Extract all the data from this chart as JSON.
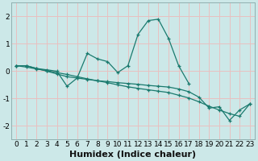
{
  "xlabel": "Humidex (Indice chaleur)",
  "bg_color": "#cce8e8",
  "grid_color": "#e8c0c0",
  "line_color": "#1a7a6e",
  "x_data": [
    0,
    1,
    2,
    3,
    4,
    5,
    6,
    7,
    8,
    9,
    10,
    11,
    12,
    13,
    14,
    15,
    16,
    17,
    18,
    19,
    20,
    21,
    22,
    23
  ],
  "curve1": [
    0.2,
    0.2,
    0.1,
    0.05,
    0.0,
    -0.55,
    -0.25,
    0.65,
    0.45,
    0.35,
    -0.05,
    0.2,
    1.35,
    1.85,
    1.9,
    1.2,
    0.2,
    -0.45,
    null,
    null,
    null,
    null,
    null,
    null
  ],
  "curve2": [
    0.2,
    0.2,
    0.1,
    0.0,
    -0.1,
    -0.2,
    -0.25,
    -0.3,
    -0.35,
    -0.38,
    -0.42,
    -0.45,
    -0.48,
    -0.52,
    -0.55,
    -0.58,
    -0.65,
    -0.75,
    -0.95,
    -1.35,
    -1.3,
    -1.8,
    -1.42,
    -1.2
  ],
  "curve3": [
    0.2,
    0.15,
    0.08,
    0.02,
    -0.05,
    -0.12,
    -0.2,
    -0.28,
    -0.35,
    -0.42,
    -0.5,
    -0.57,
    -0.63,
    -0.68,
    -0.73,
    -0.78,
    -0.88,
    -0.98,
    -1.12,
    -1.28,
    -1.42,
    -1.55,
    -1.65,
    -1.2
  ],
  "ylim": [
    -2.5,
    2.5
  ],
  "xlim": [
    -0.5,
    23.5
  ],
  "yticks": [
    -2,
    -1,
    0,
    1,
    2
  ],
  "xticks": [
    0,
    1,
    2,
    3,
    4,
    5,
    6,
    7,
    8,
    9,
    10,
    11,
    12,
    13,
    14,
    15,
    16,
    17,
    18,
    19,
    20,
    21,
    22,
    23
  ],
  "tick_fontsize": 6.5,
  "label_fontsize": 8.0,
  "figwidth": 3.2,
  "figheight": 2.0,
  "dpi": 100
}
